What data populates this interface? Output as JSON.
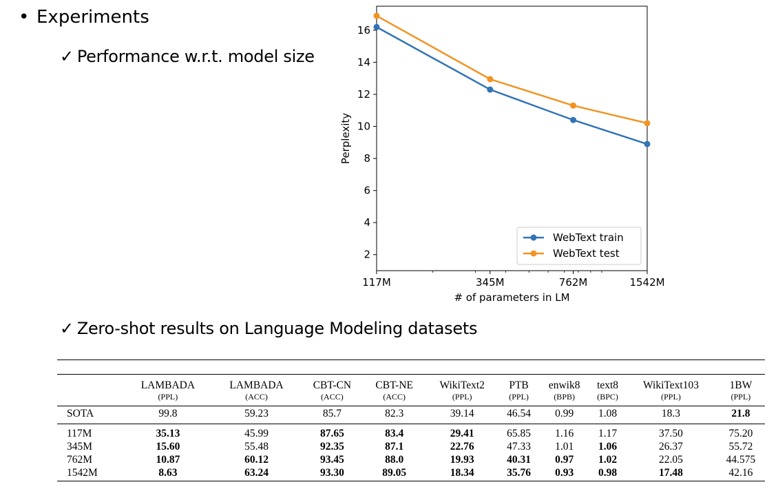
{
  "slide": {
    "bullet": "Experiments",
    "sub1": "Performance w.r.t. model size",
    "sub2": "Zero-shot results on Language Modeling datasets",
    "check_glyph": "✓",
    "bullet_glyph": "•"
  },
  "chart_data": {
    "type": "line",
    "title": "",
    "xlabel": "# of parameters in LM",
    "ylabel": "Perplexity",
    "x": [
      117,
      345,
      762,
      1542
    ],
    "x_scale": "log",
    "x_tick_labels": [
      "117M",
      "345M",
      "762M",
      "1542M"
    ],
    "y_ticks": [
      2,
      4,
      6,
      8,
      10,
      12,
      14,
      16
    ],
    "ylim": [
      1,
      17.5
    ],
    "legend_position": "lower-right",
    "grid": false,
    "series": [
      {
        "name": "WebText train",
        "color": "#3274b5",
        "values": [
          16.2,
          12.3,
          10.4,
          8.9
        ]
      },
      {
        "name": "WebText test",
        "color": "#f29322",
        "values": [
          16.9,
          12.95,
          11.3,
          10.2
        ]
      }
    ]
  },
  "table": {
    "columns": [
      {
        "name": "LAMBADA",
        "unit": "(PPL)"
      },
      {
        "name": "LAMBADA",
        "unit": "(ACC)"
      },
      {
        "name": "CBT-CN",
        "unit": "(ACC)"
      },
      {
        "name": "CBT-NE",
        "unit": "(ACC)"
      },
      {
        "name": "WikiText2",
        "unit": "(PPL)"
      },
      {
        "name": "PTB",
        "unit": "(PPL)"
      },
      {
        "name": "enwik8",
        "unit": "(BPB)"
      },
      {
        "name": "text8",
        "unit": "(BPC)"
      },
      {
        "name": "WikiText103",
        "unit": "(PPL)"
      },
      {
        "name": "1BW",
        "unit": "(PPL)"
      }
    ],
    "sota": {
      "name": "SOTA",
      "values": [
        "99.8",
        "59.23",
        "85.7",
        "82.3",
        "39.14",
        "46.54",
        "0.99",
        "1.08",
        "18.3",
        "21.8"
      ],
      "bold": [
        false,
        false,
        false,
        false,
        false,
        false,
        false,
        false,
        false,
        true
      ]
    },
    "rows": [
      {
        "name": "117M",
        "values": [
          "35.13",
          "45.99",
          "87.65",
          "83.4",
          "29.41",
          "65.85",
          "1.16",
          "1.17",
          "37.50",
          "75.20"
        ],
        "bold": [
          true,
          false,
          true,
          true,
          true,
          false,
          false,
          false,
          false,
          false
        ]
      },
      {
        "name": "345M",
        "values": [
          "15.60",
          "55.48",
          "92.35",
          "87.1",
          "22.76",
          "47.33",
          "1.01",
          "1.06",
          "26.37",
          "55.72"
        ],
        "bold": [
          true,
          false,
          true,
          true,
          true,
          false,
          false,
          true,
          false,
          false
        ]
      },
      {
        "name": "762M",
        "values": [
          "10.87",
          "60.12",
          "93.45",
          "88.0",
          "19.93",
          "40.31",
          "0.97",
          "1.02",
          "22.05",
          "44.575"
        ],
        "bold": [
          true,
          true,
          true,
          true,
          true,
          true,
          true,
          true,
          false,
          false
        ]
      },
      {
        "name": "1542M",
        "values": [
          "8.63",
          "63.24",
          "93.30",
          "89.05",
          "18.34",
          "35.76",
          "0.93",
          "0.98",
          "17.48",
          "42.16"
        ],
        "bold": [
          true,
          true,
          true,
          true,
          true,
          true,
          true,
          true,
          true,
          false
        ]
      }
    ]
  }
}
